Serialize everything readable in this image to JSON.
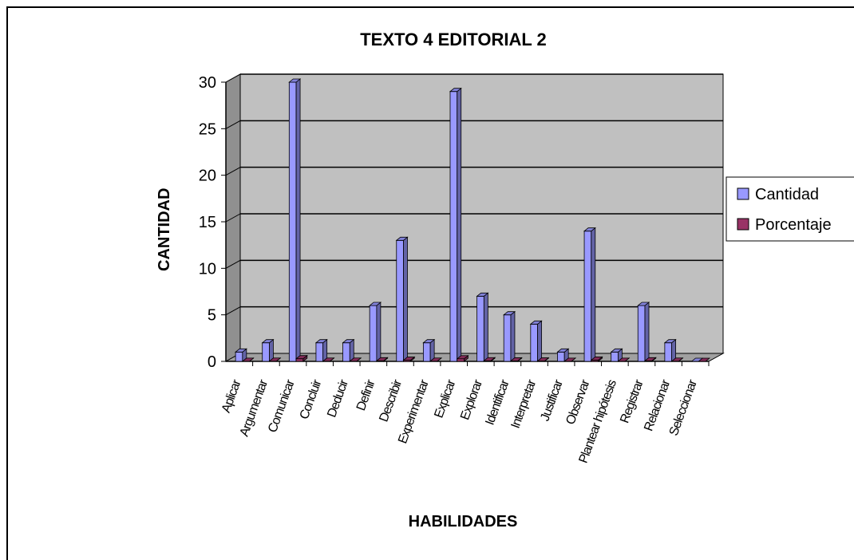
{
  "chart_data": {
    "type": "bar",
    "title": "TEXTO 4 EDITORIAL 2",
    "xlabel": "HABILIDADES",
    "ylabel": "CANTIDAD",
    "ylim": [
      0,
      30
    ],
    "yticks": [
      0,
      5,
      10,
      15,
      20,
      25,
      30
    ],
    "categories": [
      "Aplicar",
      "Argumentar",
      "Comunicar",
      "Concluir",
      "Deducir",
      "Definir",
      "Describir",
      "Experimentar",
      "Explicar",
      "Explorar",
      "Identificar",
      "Interpretar",
      "Justificar",
      "Observar",
      "Plantear hipótesis",
      "Registrar",
      "Relacionar",
      "Seleccionar"
    ],
    "series": [
      {
        "name": "Cantidad",
        "color": "#9999ff",
        "values": [
          1,
          2,
          30,
          2,
          2,
          6,
          13,
          2,
          29,
          7,
          5,
          4,
          1,
          14,
          1,
          6,
          2,
          0
        ]
      },
      {
        "name": "Porcentaje",
        "color": "#993366",
        "values": [
          0.0095,
          0.019,
          0.2857,
          0.019,
          0.019,
          0.0571,
          0.1238,
          0.019,
          0.2762,
          0.0667,
          0.0476,
          0.0381,
          0.0095,
          0.1333,
          0.0095,
          0.0571,
          0.019,
          0
        ]
      }
    ],
    "grid": true,
    "legend": "right",
    "wall_color": "#c0c0c0"
  }
}
